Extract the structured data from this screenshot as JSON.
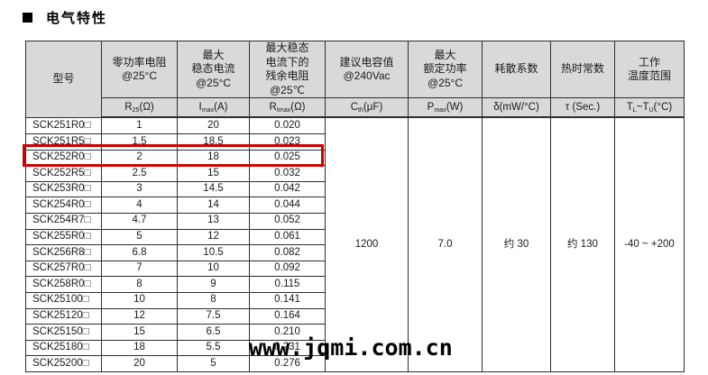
{
  "title": {
    "text": "电气特性"
  },
  "table": {
    "columns": [
      {
        "label": "型号"
      },
      {
        "label": "零功率电阻\n@25°C",
        "sym": {
          "main": "R",
          "sub": "25",
          "post": "(Ω)"
        }
      },
      {
        "label": "最大\n稳态电流\n@25°C",
        "sym": {
          "main": "I",
          "sub": "max",
          "post": "(A)"
        }
      },
      {
        "label": "最大稳态\n电流下的\n残余电阻\n@25℃",
        "sym": {
          "main": "R",
          "sub": "Imax",
          "post": "(Ω)"
        }
      },
      {
        "label": "建议电容值\n@240Vac",
        "sym": {
          "main": "C",
          "sub": "th",
          "post": "(μF)"
        }
      },
      {
        "label": "最大\n额定功率\n@25°C",
        "sym": {
          "main": "P",
          "sub": "max",
          "post": "(W)"
        }
      },
      {
        "label": "耗散系数",
        "sym": {
          "main": "δ(mW/°C)",
          "sub": "",
          "post": ""
        }
      },
      {
        "label": "热时常数",
        "sym": {
          "main": "τ (Sec.)",
          "sub": "",
          "post": ""
        }
      },
      {
        "label": "工作\n温度范围",
        "sym": {
          "t1": "T",
          "s1": "L",
          "t2": "~T",
          "s2": "U",
          "t3": "(°C)"
        }
      }
    ],
    "rows": [
      {
        "model": "SCK251R0□",
        "r25": "1",
        "imax": "20",
        "rlmax": "0.020"
      },
      {
        "model": "SCK251R5□",
        "r25": "1.5",
        "imax": "18.5",
        "rlmax": "0.023"
      },
      {
        "model": "SCK252R0□",
        "r25": "2",
        "imax": "18",
        "rlmax": "0.025"
      },
      {
        "model": "SCK252R5□",
        "r25": "2.5",
        "imax": "15",
        "rlmax": "0.032"
      },
      {
        "model": "SCK253R0□",
        "r25": "3",
        "imax": "14.5",
        "rlmax": "0.042"
      },
      {
        "model": "SCK254R0□",
        "r25": "4",
        "imax": "14",
        "rlmax": "0.044"
      },
      {
        "model": "SCK254R7□",
        "r25": "4.7",
        "imax": "13",
        "rlmax": "0.052"
      },
      {
        "model": "SCK255R0□",
        "r25": "5",
        "imax": "12",
        "rlmax": "0.061"
      },
      {
        "model": "SCK256R8□",
        "r25": "6.8",
        "imax": "10.5",
        "rlmax": "0.082"
      },
      {
        "model": "SCK257R0□",
        "r25": "7",
        "imax": "10",
        "rlmax": "0.092"
      },
      {
        "model": "SCK258R0□",
        "r25": "8",
        "imax": "9",
        "rlmax": "0.115"
      },
      {
        "model": "SCK25100□",
        "r25": "10",
        "imax": "8",
        "rlmax": "0.141"
      },
      {
        "model": "SCK25120□",
        "r25": "12",
        "imax": "7.5",
        "rlmax": "0.164"
      },
      {
        "model": "SCK25150□",
        "r25": "15",
        "imax": "6.5",
        "rlmax": "0.210"
      },
      {
        "model": "SCK25180□",
        "r25": "18",
        "imax": "5.5",
        "rlmax": "0.231"
      },
      {
        "model": "SCK25200□",
        "r25": "20",
        "imax": "5",
        "rlmax": "0.276"
      }
    ],
    "merged": {
      "cth": "1200",
      "pmax": "7.0",
      "delta": "约 30",
      "tau": "约 130",
      "temp": "-40 ~ +200"
    },
    "highlight": {
      "model": "SCK252R0□",
      "row_index": 2,
      "color": "#cc0000"
    },
    "header_bg": "#d9d9d9"
  },
  "watermark": {
    "text": "www.jqmi.com.cn"
  }
}
